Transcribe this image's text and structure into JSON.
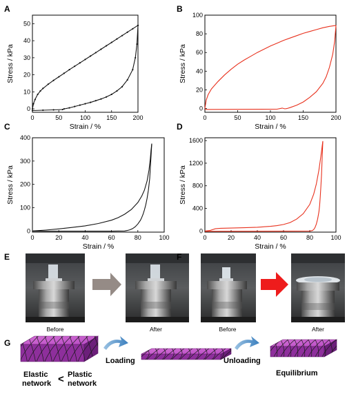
{
  "panels": {
    "A": {
      "letter": "A",
      "chart_data": {
        "type": "line",
        "title": "",
        "xlabel": "Strain / %",
        "ylabel": "Stress / kPa",
        "xlim": [
          0,
          200
        ],
        "ylim": [
          -2,
          55
        ],
        "xticks": [
          "0",
          "50",
          "100",
          "150",
          "200"
        ],
        "yticks": [
          "0",
          "10",
          "20",
          "30",
          "40",
          "50"
        ],
        "xtick_values": [
          0,
          50,
          100,
          150,
          200
        ],
        "ytick_values": [
          0,
          10,
          20,
          30,
          40,
          50
        ],
        "color": "#111111",
        "markers": true,
        "series": [
          {
            "values": [
              [
                0,
                0
              ],
              [
                2,
                3
              ],
              [
                5,
                5.5
              ],
              [
                10,
                8.5
              ],
              [
                15,
                10.5
              ],
              [
                20,
                12
              ],
              [
                30,
                14.5
              ],
              [
                40,
                16.7
              ],
              [
                50,
                18.8
              ],
              [
                60,
                20.9
              ],
              [
                70,
                23
              ],
              [
                80,
                25
              ],
              [
                90,
                27
              ],
              [
                100,
                29
              ],
              [
                110,
                31
              ],
              [
                120,
                33
              ],
              [
                130,
                35
              ],
              [
                140,
                37
              ],
              [
                150,
                39
              ],
              [
                160,
                41
              ],
              [
                170,
                43
              ],
              [
                180,
                45
              ],
              [
                190,
                47
              ],
              [
                200,
                49
              ]
            ]
          },
          {
            "values": [
              [
                200,
                49
              ],
              [
                198,
                38
              ],
              [
                195,
                30
              ],
              [
                190,
                23
              ],
              [
                180,
                17
              ],
              [
                170,
                13
              ],
              [
                160,
                10.5
              ],
              [
                150,
                8.5
              ],
              [
                140,
                7
              ],
              [
                130,
                5.8
              ],
              [
                120,
                4.8
              ],
              [
                110,
                3.8
              ],
              [
                100,
                3
              ],
              [
                90,
                2.2
              ],
              [
                80,
                1.4
              ],
              [
                70,
                0.6
              ],
              [
                60,
                0
              ],
              [
                57,
                -0.4
              ],
              [
                40,
                -0.6
              ],
              [
                20,
                -0.8
              ],
              [
                0,
                -1
              ]
            ]
          }
        ]
      }
    },
    "B": {
      "letter": "B",
      "chart_data": {
        "type": "line",
        "title": "",
        "xlabel": "Strain / %",
        "ylabel": "Stress / kPa",
        "xlim": [
          0,
          200
        ],
        "ylim": [
          -4,
          100
        ],
        "xticks": [
          "0",
          "50",
          "100",
          "150",
          "200"
        ],
        "yticks": [
          "0",
          "20",
          "40",
          "60",
          "80",
          "100"
        ],
        "xtick_values": [
          0,
          50,
          100,
          150,
          200
        ],
        "ytick_values": [
          0,
          20,
          40,
          60,
          80,
          100
        ],
        "color": "#e8301c",
        "markers": false,
        "series": [
          {
            "values": [
              [
                0,
                0
              ],
              [
                2,
                9
              ],
              [
                5,
                15
              ],
              [
                10,
                21
              ],
              [
                20,
                29
              ],
              [
                30,
                36
              ],
              [
                40,
                42
              ],
              [
                50,
                47.5
              ],
              [
                60,
                52
              ],
              [
                70,
                56
              ],
              [
                80,
                60
              ],
              [
                90,
                63.5
              ],
              [
                100,
                67
              ],
              [
                110,
                70
              ],
              [
                120,
                73
              ],
              [
                130,
                75.5
              ],
              [
                140,
                78
              ],
              [
                150,
                80.5
              ],
              [
                160,
                82.5
              ],
              [
                170,
                84.5
              ],
              [
                180,
                86.5
              ],
              [
                190,
                88
              ],
              [
                200,
                89
              ]
            ]
          },
          {
            "values": [
              [
                200,
                89
              ],
              [
                198,
                72
              ],
              [
                195,
                58
              ],
              [
                190,
                44
              ],
              [
                185,
                34
              ],
              [
                180,
                27
              ],
              [
                170,
                18
              ],
              [
                160,
                12
              ],
              [
                150,
                7
              ],
              [
                140,
                3.5
              ],
              [
                130,
                1
              ],
              [
                125,
                0
              ],
              [
                122,
                -0.3
              ],
              [
                118,
                0.5
              ],
              [
                110,
                -0.7
              ],
              [
                60,
                -0.8
              ],
              [
                0,
                -1
              ]
            ]
          }
        ]
      }
    },
    "C": {
      "letter": "C",
      "chart_data": {
        "type": "line",
        "title": "",
        "xlabel": "Strain / %",
        "ylabel": "Stress / kPa",
        "xlim": [
          0,
          100
        ],
        "ylim": [
          -5,
          400
        ],
        "xticks": [
          "0",
          "20",
          "40",
          "60",
          "80",
          "100"
        ],
        "yticks": [
          "0",
          "100",
          "200",
          "300",
          "400"
        ],
        "xtick_values": [
          0,
          20,
          40,
          60,
          80,
          100
        ],
        "ytick_values": [
          0,
          100,
          200,
          300,
          400
        ],
        "color": "#111111",
        "markers": false,
        "series": [
          {
            "values": [
              [
                0,
                0
              ],
              [
                10,
                4
              ],
              [
                20,
                9
              ],
              [
                30,
                15
              ],
              [
                40,
                22
              ],
              [
                50,
                32
              ],
              [
                60,
                46
              ],
              [
                65,
                57
              ],
              [
                70,
                72
              ],
              [
                75,
                92
              ],
              [
                80,
                122
              ],
              [
                83,
                150
              ],
              [
                85,
                175
              ],
              [
                87,
                215
              ],
              [
                88.5,
                262
              ],
              [
                89.5,
                310
              ],
              [
                90,
                345
              ],
              [
                90.6,
                375
              ]
            ]
          },
          {
            "values": [
              [
                90.6,
                375
              ],
              [
                90,
                320
              ],
              [
                89.5,
                270
              ],
              [
                89,
                225
              ],
              [
                88,
                175
              ],
              [
                87,
                140
              ],
              [
                86,
                112
              ],
              [
                85,
                90
              ],
              [
                84,
                72
              ],
              [
                83,
                58
              ],
              [
                82,
                46
              ],
              [
                80,
                30
              ],
              [
                78,
                18
              ],
              [
                76,
                10
              ],
              [
                74,
                5
              ],
              [
                72,
                2
              ],
              [
                70,
                0
              ],
              [
                60,
                -1
              ],
              [
                0,
                -1
              ]
            ]
          }
        ]
      }
    },
    "D": {
      "letter": "D",
      "chart_data": {
        "type": "line",
        "title": "",
        "xlabel": "Strain / %",
        "ylabel": "Stress / kPa",
        "xlim": [
          0,
          100
        ],
        "ylim": [
          -20,
          1650
        ],
        "xticks": [
          "0",
          "20",
          "40",
          "60",
          "80",
          "100"
        ],
        "yticks": [
          "0",
          "400",
          "800",
          "1200",
          "1600"
        ],
        "xtick_values": [
          0,
          20,
          40,
          60,
          80,
          100
        ],
        "ytick_values": [
          0,
          400,
          800,
          1200,
          1600
        ],
        "color": "#e8301c",
        "markers": false,
        "series": [
          {
            "values": [
              [
                0,
                0
              ],
              [
                4,
                10
              ],
              [
                8,
                40
              ],
              [
                12,
                48
              ],
              [
                20,
                52
              ],
              [
                30,
                58
              ],
              [
                40,
                66
              ],
              [
                50,
                82
              ],
              [
                55,
                95
              ],
              [
                60,
                115
              ],
              [
                65,
                150
              ],
              [
                70,
                210
              ],
              [
                75,
                305
              ],
              [
                80,
                470
              ],
              [
                83,
                650
              ],
              [
                85,
                830
              ],
              [
                87,
                1080
              ],
              [
                88.5,
                1320
              ],
              [
                89.5,
                1510
              ],
              [
                90,
                1590
              ]
            ]
          },
          {
            "values": [
              [
                90,
                1590
              ],
              [
                89.7,
                1420
              ],
              [
                89.3,
                1200
              ],
              [
                89,
                1000
              ],
              [
                88.5,
                780
              ],
              [
                88,
                600
              ],
              [
                87.5,
                450
              ],
              [
                87,
                340
              ],
              [
                86,
                210
              ],
              [
                85,
                120
              ],
              [
                84,
                60
              ],
              [
                83,
                25
              ],
              [
                82,
                8
              ],
              [
                80,
                0
              ],
              [
                60,
                -3
              ],
              [
                0,
                -5
              ]
            ]
          }
        ]
      }
    },
    "E": {
      "letter": "E",
      "before_label": "Before",
      "after_label": "After"
    },
    "F": {
      "letter": "F",
      "before_label": "Before",
      "after_label": "After"
    },
    "G": {
      "letter": "G",
      "loading_label": "Loading",
      "unloading_label": "Unloading",
      "equilibrium_label": "Equilibrium",
      "elastic_label_1": "Elastic",
      "elastic_label_2": "network",
      "less_than": "<",
      "plastic_label_1": "Plastic",
      "plastic_label_2": "network"
    }
  }
}
